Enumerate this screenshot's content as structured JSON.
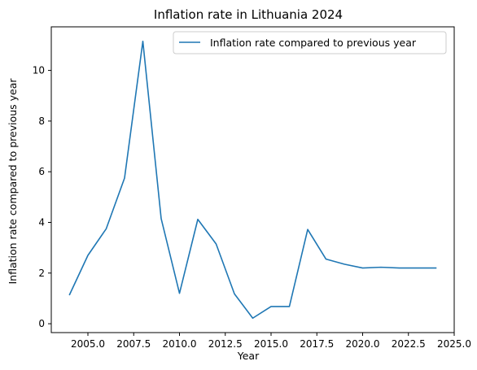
{
  "chart_data": {
    "type": "line",
    "title": "Inflation rate in Lithuania 2024",
    "xlabel": "Year",
    "ylabel": "Inflation rate compared to previous year",
    "xlim": [
      2003.0,
      2025.0
    ],
    "ylim": [
      -0.35,
      11.72
    ],
    "x_ticks": [
      2005.0,
      2007.5,
      2010.0,
      2012.5,
      2015.0,
      2017.5,
      2020.0,
      2022.5,
      2025.0
    ],
    "x_tick_labels": [
      "2005.0",
      "2007.5",
      "2010.0",
      "2012.5",
      "2015.0",
      "2017.5",
      "2020.0",
      "2022.5",
      "2025.0"
    ],
    "y_ticks": [
      0,
      2,
      4,
      6,
      8,
      10
    ],
    "y_tick_labels": [
      "0",
      "2",
      "4",
      "6",
      "8",
      "10"
    ],
    "grid": false,
    "legend_position": "upper right",
    "series": [
      {
        "name": "Inflation rate compared to previous year",
        "color": "#1f77b4",
        "x": [
          2004,
          2005,
          2006,
          2007,
          2008,
          2009,
          2010,
          2011,
          2012,
          2013,
          2014,
          2015,
          2016,
          2017,
          2018,
          2019,
          2020,
          2021,
          2022,
          2023,
          2024
        ],
        "y": [
          1.15,
          2.7,
          3.75,
          5.75,
          11.15,
          4.15,
          1.2,
          4.12,
          3.15,
          1.18,
          0.22,
          0.68,
          0.68,
          3.72,
          2.55,
          2.35,
          2.2,
          2.23,
          2.2,
          2.2,
          2.2
        ]
      }
    ]
  }
}
